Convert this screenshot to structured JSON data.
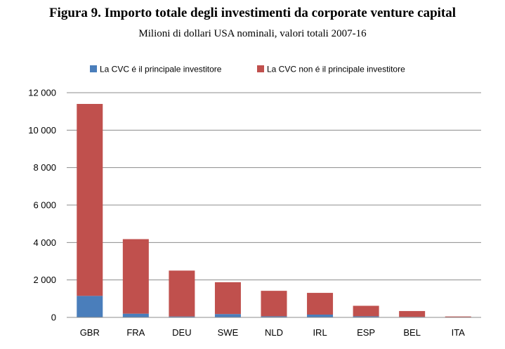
{
  "chart_data": {
    "type": "bar",
    "stacked": true,
    "title": "Figura 9. Importo totale degli investimenti da corporate venture capital",
    "subtitle": "Milioni di dollari USA nominali, valori totali 2007-16",
    "categories": [
      "GBR",
      "FRA",
      "DEU",
      "SWE",
      "NLD",
      "IRL",
      "ESP",
      "BEL",
      "ITA"
    ],
    "series": [
      {
        "name": "La CVC é il principale investitore",
        "color": "#4a7ebb",
        "values": [
          1150,
          200,
          50,
          180,
          60,
          150,
          60,
          30,
          5
        ]
      },
      {
        "name": "La CVC non é il principale investitore",
        "color": "#c0504d",
        "values": [
          10250,
          3980,
          2450,
          1700,
          1360,
          1160,
          560,
          310,
          45
        ]
      }
    ],
    "ylim": [
      0,
      12000
    ],
    "yticks": [
      0,
      2000,
      4000,
      6000,
      8000,
      10000,
      12000
    ],
    "ytick_labels": [
      "0",
      "2 000",
      "4 000",
      "6 000",
      "8 000",
      "10 000",
      "12 000"
    ],
    "grid": true,
    "legend_position": "top"
  }
}
